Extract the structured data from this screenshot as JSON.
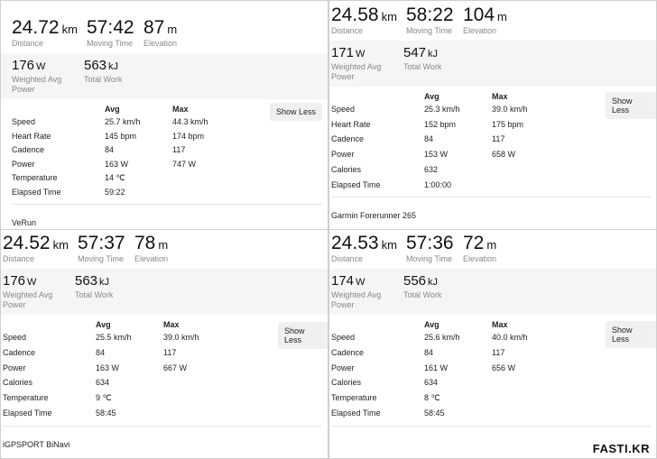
{
  "panels": [
    {
      "distance": "24.72",
      "distance_unit": "km",
      "distance_label": "Distance",
      "moving_time": "57:42",
      "moving_time_label": "Moving Time",
      "elevation": "87",
      "elevation_unit": "m",
      "elevation_label": "Elevation",
      "wap": "176",
      "wap_unit": "W",
      "wap_label": "Weighted Avg Power",
      "work": "563",
      "work_unit": "kJ",
      "work_label": "Total Work",
      "avg_header": "Avg",
      "max_header": "Max",
      "button": "Show Less",
      "device": "VeRun",
      "rows": [
        {
          "label": "Speed",
          "avg": "25.7 km/h",
          "max": "44.3 km/h"
        },
        {
          "label": "Heart Rate",
          "avg": "145 bpm",
          "max": "174 bpm"
        },
        {
          "label": "Cadence",
          "avg": "84",
          "max": "117"
        },
        {
          "label": "Power",
          "avg": "163 W",
          "max": "747 W"
        },
        {
          "label": "Temperature",
          "avg": "14 ℃",
          "max": ""
        },
        {
          "label": "Elapsed Time",
          "avg": "59:22",
          "max": ""
        }
      ]
    },
    {
      "distance": "24.58",
      "distance_unit": "km",
      "distance_label": "Distance",
      "moving_time": "58:22",
      "moving_time_label": "Moving Time",
      "elevation": "104",
      "elevation_unit": "m",
      "elevation_label": "Elevation",
      "wap": "171",
      "wap_unit": "W",
      "wap_label": "Weighted Avg Power",
      "work": "547",
      "work_unit": "kJ",
      "work_label": "Total Work",
      "avg_header": "Avg",
      "max_header": "Max",
      "button": "Show Less",
      "device": "Garmin Forerunner 265",
      "rows": [
        {
          "label": "Speed",
          "avg": "25.3 km/h",
          "max": "39.0 km/h"
        },
        {
          "label": "Heart Rate",
          "avg": "152 bpm",
          "max": "175 bpm"
        },
        {
          "label": "Cadence",
          "avg": "84",
          "max": "117"
        },
        {
          "label": "Power",
          "avg": "153 W",
          "max": "658 W"
        },
        {
          "label": "Calories",
          "avg": "632",
          "max": ""
        },
        {
          "label": "Elapsed Time",
          "avg": "1:00:00",
          "max": ""
        }
      ]
    },
    {
      "distance": "24.52",
      "distance_unit": "km",
      "distance_label": "Distance",
      "moving_time": "57:37",
      "moving_time_label": "Moving Time",
      "elevation": "78",
      "elevation_unit": "m",
      "elevation_label": "Elevation",
      "wap": "176",
      "wap_unit": "W",
      "wap_label": "Weighted Avg Power",
      "work": "563",
      "work_unit": "kJ",
      "work_label": "Total Work",
      "avg_header": "Avg",
      "max_header": "Max",
      "button": "Show Less",
      "device": "iGPSPORT BiNavi",
      "rows": [
        {
          "label": "Speed",
          "avg": "25.5 km/h",
          "max": "39.0 km/h"
        },
        {
          "label": "Cadence",
          "avg": "84",
          "max": "117"
        },
        {
          "label": "Power",
          "avg": "163 W",
          "max": "667 W"
        },
        {
          "label": "Calories",
          "avg": "634",
          "max": ""
        },
        {
          "label": "Temperature",
          "avg": "9 ℃",
          "max": ""
        },
        {
          "label": "Elapsed Time",
          "avg": "58:45",
          "max": ""
        }
      ]
    },
    {
      "distance": "24.53",
      "distance_unit": "km",
      "distance_label": "Distance",
      "moving_time": "57:36",
      "moving_time_label": "Moving Time",
      "elevation": "72",
      "elevation_unit": "m",
      "elevation_label": "Elevation",
      "wap": "174",
      "wap_unit": "W",
      "wap_label": "Weighted Avg Power",
      "work": "556",
      "work_unit": "kJ",
      "work_label": "Total Work",
      "avg_header": "Avg",
      "max_header": "Max",
      "button": "Show Less",
      "device": "",
      "rows": [
        {
          "label": "Speed",
          "avg": "25.6 km/h",
          "max": "40.0 km/h"
        },
        {
          "label": "Cadence",
          "avg": "84",
          "max": "117"
        },
        {
          "label": "Power",
          "avg": "161 W",
          "max": "656 W"
        },
        {
          "label": "Calories",
          "avg": "634",
          "max": ""
        },
        {
          "label": "Temperature",
          "avg": "8 ℃",
          "max": ""
        },
        {
          "label": "Elapsed Time",
          "avg": "58:45",
          "max": ""
        }
      ]
    }
  ],
  "watermark": "FASTI.KR"
}
